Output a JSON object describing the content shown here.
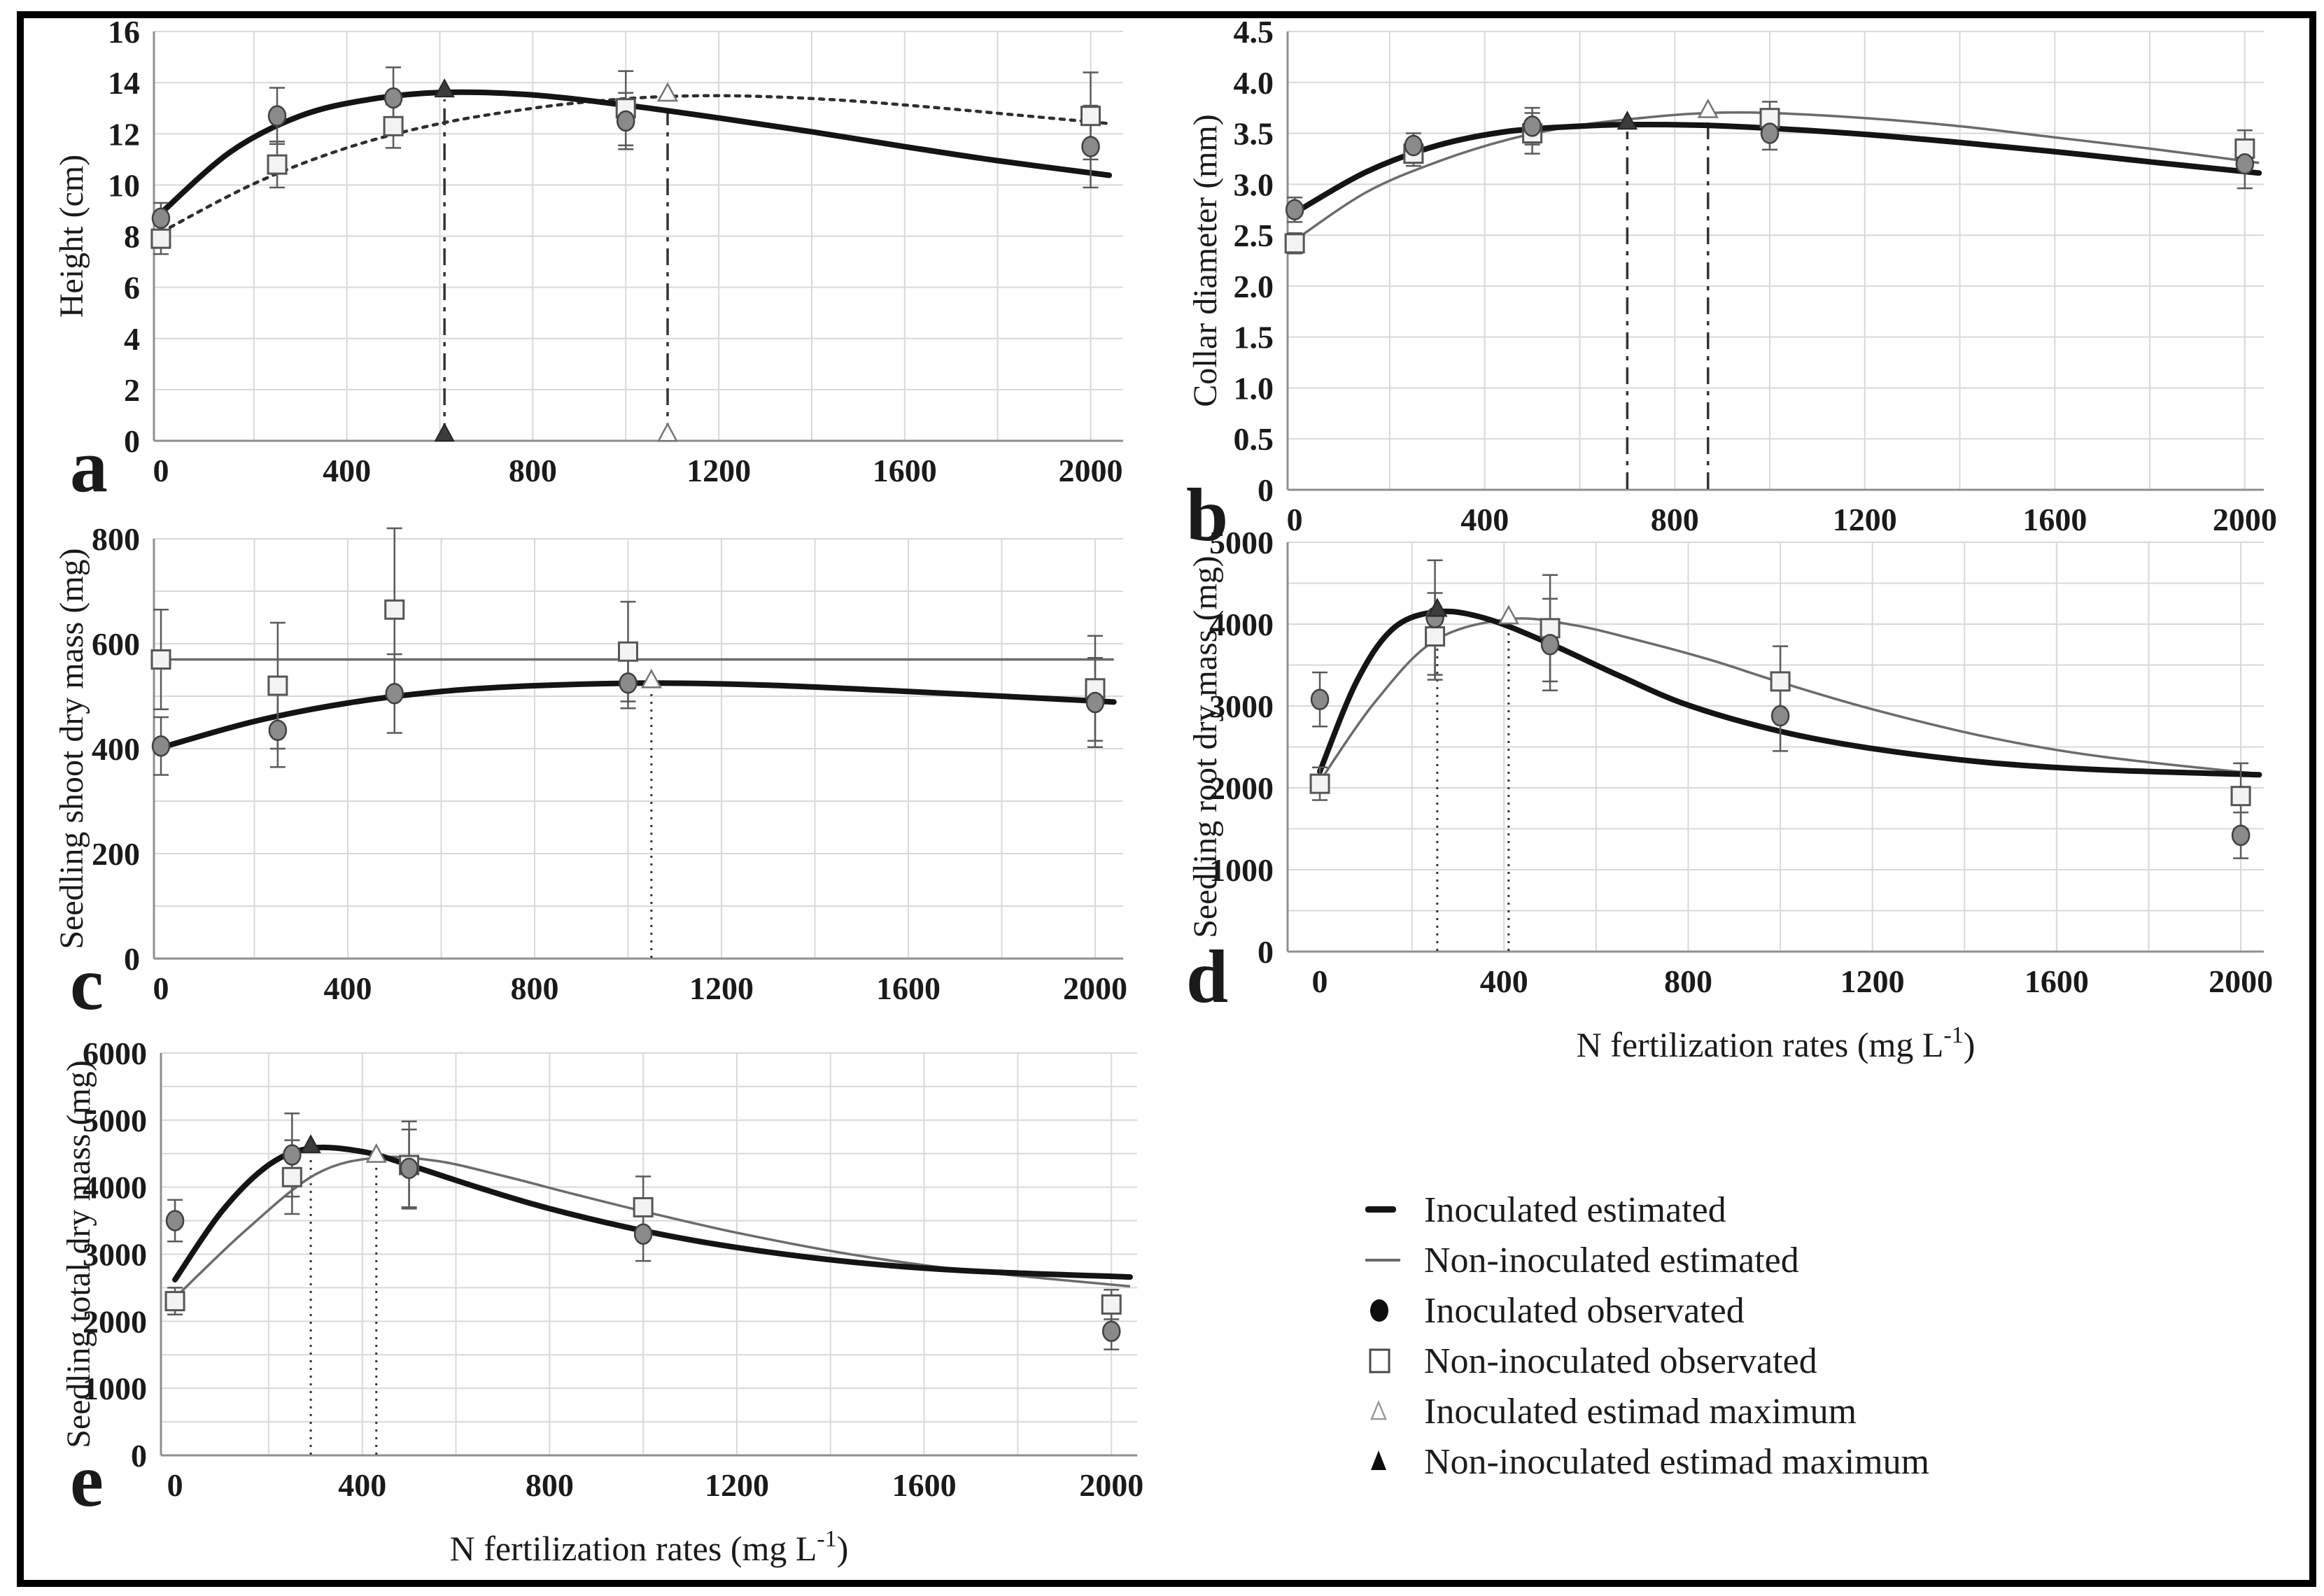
{
  "figure": {
    "legend": {
      "items": [
        {
          "marker": "thick-line-icon",
          "label": "Inoculated estimated"
        },
        {
          "marker": "thin-line-icon",
          "label": "Non-inoculated estimated"
        },
        {
          "marker": "filled-circle-icon",
          "label": "Inoculated observated"
        },
        {
          "marker": "open-square-icon",
          "label": "Non-inoculated observated"
        },
        {
          "marker": "open-triangle-icon",
          "label": "Inoculated estimad maximum"
        },
        {
          "marker": "filled-triangle-icon",
          "label": "Non-inoculated estimad maximum"
        }
      ]
    },
    "colors": {
      "inoculated_line": "#141414",
      "non_inoculated_line": "#6b6b6b",
      "dotted_line": "#2e2e2e",
      "grid": "#d9d9d9",
      "axis": "#8f8f8f",
      "circle_fill": "#8a8a8a",
      "circle_stroke": "#404040",
      "square_fill": "#f3f3f3",
      "square_stroke": "#555555",
      "open_triangle_fill": "#fbfbfb",
      "open_triangle_stroke": "#757575",
      "filled_triangle": "#3c3c3c",
      "error_bar": "#5a5a5a",
      "max_line": "#333333",
      "text": "#1a1a1a"
    }
  },
  "chart_data": [
    {
      "id": "a",
      "type": "line",
      "panel_letter": "a",
      "ylabel": "Height (cm)",
      "xlabel": "",
      "ylim": [
        0,
        16
      ],
      "ygrid_step": 2,
      "ytick_vals": [
        0,
        2,
        4,
        6,
        8,
        10,
        12,
        14,
        16
      ],
      "ytick_labels": [
        "0",
        "2",
        "4",
        "6",
        "8",
        "10",
        "12",
        "14",
        "16"
      ],
      "xlim": [
        -15,
        2070
      ],
      "xgrid_step": 200,
      "xtick_vals": [
        0,
        400,
        800,
        1200,
        1600,
        2000
      ],
      "xtick_labels": [
        "0",
        "400",
        "800",
        "1200",
        "1600",
        "2000"
      ],
      "x_obs": [
        0,
        250,
        500,
        1000,
        2000
      ],
      "series": {
        "inoculated_estimated": {
          "style": "thick",
          "points": [
            [
              0,
              8.9
            ],
            [
              150,
              11.3
            ],
            [
              300,
              12.7
            ],
            [
              450,
              13.35
            ],
            [
              610,
              13.62
            ],
            [
              800,
              13.52
            ],
            [
              1000,
              13.12
            ],
            [
              1200,
              12.62
            ],
            [
              1400,
              12.08
            ],
            [
              1600,
              11.5
            ],
            [
              1800,
              10.95
            ],
            [
              2040,
              10.38
            ]
          ]
        },
        "non_inoculated_estimated": {
          "style": "dotted",
          "points": [
            [
              0,
              8.15
            ],
            [
              200,
              10.05
            ],
            [
              400,
              11.45
            ],
            [
              600,
              12.4
            ],
            [
              800,
              13.0
            ],
            [
              950,
              13.3
            ],
            [
              1090,
              13.46
            ],
            [
              1250,
              13.48
            ],
            [
              1450,
              13.33
            ],
            [
              1650,
              13.05
            ],
            [
              1850,
              12.72
            ],
            [
              2040,
              12.4
            ]
          ]
        },
        "inoculated_observed": {
          "y": [
            8.7,
            12.7,
            13.4,
            12.5,
            11.5
          ],
          "err": [
            0.6,
            1.1,
            1.2,
            1.1,
            1.6
          ]
        },
        "non_inoculated_observed": {
          "y": [
            7.9,
            10.8,
            12.3,
            13.0,
            12.7
          ],
          "err": [
            0.6,
            0.9,
            0.85,
            1.45,
            1.7
          ]
        }
      },
      "maxima": [
        {
          "x": 610,
          "y": 13.62,
          "marker": "filled-triangle",
          "base_marker": true
        },
        {
          "x": 1090,
          "y": 13.46,
          "marker": "open-triangle",
          "base_marker": true
        }
      ],
      "max_line_style": "dashdot"
    },
    {
      "id": "b",
      "type": "line",
      "panel_letter": "b",
      "ylabel": "Collar diameter (mm)",
      "xlabel": "",
      "ylim": [
        0,
        4.5
      ],
      "ygrid_step": 0.5,
      "ytick_vals": [
        0,
        0.5,
        1.0,
        1.5,
        2.0,
        2.5,
        3.0,
        3.5,
        4.0,
        4.5
      ],
      "ytick_labels": [
        "0",
        "0.5",
        "1.0",
        "1.5",
        "2.0",
        "2.5",
        "3.0",
        "3.5",
        "4.0",
        "4.5"
      ],
      "xlim": [
        -15,
        2040
      ],
      "xgrid_step": 200,
      "xtick_vals": [
        0,
        400,
        800,
        1200,
        1600,
        2000
      ],
      "xtick_labels": [
        "0",
        "400",
        "800",
        "1200",
        "1600",
        "2000"
      ],
      "x_obs": [
        0,
        250,
        500,
        1000,
        2000
      ],
      "series": {
        "inoculated_estimated": {
          "style": "thick",
          "points": [
            [
              0,
              2.72
            ],
            [
              150,
              3.12
            ],
            [
              300,
              3.38
            ],
            [
              450,
              3.52
            ],
            [
              600,
              3.57
            ],
            [
              700,
              3.585
            ],
            [
              850,
              3.58
            ],
            [
              1000,
              3.55
            ],
            [
              1200,
              3.49
            ],
            [
              1400,
              3.41
            ],
            [
              1600,
              3.32
            ],
            [
              1800,
              3.22
            ],
            [
              2030,
              3.11
            ]
          ]
        },
        "non_inoculated_estimated": {
          "style": "thin",
          "points": [
            [
              0,
              2.45
            ],
            [
              150,
              2.92
            ],
            [
              300,
              3.22
            ],
            [
              450,
              3.44
            ],
            [
              600,
              3.58
            ],
            [
              750,
              3.66
            ],
            [
              870,
              3.7
            ],
            [
              1000,
              3.7
            ],
            [
              1200,
              3.65
            ],
            [
              1400,
              3.57
            ],
            [
              1600,
              3.46
            ],
            [
              1800,
              3.35
            ],
            [
              2030,
              3.21
            ]
          ]
        },
        "inoculated_observed": {
          "y": [
            2.75,
            3.38,
            3.57,
            3.5,
            3.2
          ],
          "err": [
            0.12,
            0.12,
            0.18,
            0.16,
            0.24
          ]
        },
        "non_inoculated_observed": {
          "y": [
            2.42,
            3.3,
            3.5,
            3.65,
            3.35
          ],
          "err": [
            0.1,
            0.12,
            0.2,
            0.16,
            0.18
          ]
        }
      },
      "maxima": [
        {
          "x": 700,
          "y": 3.585,
          "marker": "filled-triangle",
          "base_marker": false
        },
        {
          "x": 870,
          "y": 3.7,
          "marker": "open-triangle",
          "base_marker": false
        }
      ],
      "max_line_style": "dashdot"
    },
    {
      "id": "c",
      "type": "line",
      "panel_letter": "c",
      "ylabel": "Seedling shoot dry mass (mg)",
      "xlabel": "",
      "ylim": [
        0,
        800
      ],
      "ygrid_step": 100,
      "ytick_vals": [
        0,
        200,
        400,
        600,
        800
      ],
      "ytick_labels": [
        "0",
        "200",
        "400",
        "600",
        "800"
      ],
      "xlim": [
        -15,
        2060
      ],
      "xgrid_step": 200,
      "xtick_vals": [
        0,
        400,
        800,
        1200,
        1600,
        2000
      ],
      "xtick_labels": [
        "0",
        "400",
        "800",
        "1200",
        "1600",
        "2000"
      ],
      "x_obs": [
        0,
        250,
        500,
        1000,
        2000
      ],
      "series": {
        "inoculated_estimated": {
          "style": "thick",
          "points": [
            [
              0,
              402
            ],
            [
              200,
              452
            ],
            [
              400,
              487
            ],
            [
              600,
              509
            ],
            [
              800,
              520
            ],
            [
              1050,
              525
            ],
            [
              1300,
              521
            ],
            [
              1600,
              509
            ],
            [
              2040,
              489
            ]
          ]
        },
        "non_inoculated_estimated": {
          "style": "thin",
          "points": [
            [
              0,
              570
            ],
            [
              2040,
              570
            ]
          ]
        },
        "inoculated_observed": {
          "y": [
            405,
            435,
            505,
            525,
            488
          ],
          "err": [
            55,
            70,
            75,
            48,
            85
          ]
        },
        "non_inoculated_observed": {
          "y": [
            570,
            520,
            665,
            585,
            515
          ],
          "err": [
            95,
            120,
            155,
            95,
            100
          ]
        }
      },
      "maxima": [
        {
          "x": 1050,
          "y": 525,
          "marker": "open-triangle",
          "base_marker": false
        }
      ],
      "max_line_style": "dotted"
    },
    {
      "id": "d",
      "type": "line",
      "panel_letter": "d",
      "ylabel": "Seedling root dry mass (mg)",
      "xlabel": "N fertilization rates (mg L⁻¹)",
      "ylim": [
        0,
        5000
      ],
      "ygrid_step": 500,
      "ytick_vals": [
        0,
        1000,
        2000,
        3000,
        4000,
        5000
      ],
      "ytick_labels": [
        "0",
        "1000",
        "2000",
        "3000",
        "4000",
        "5000"
      ],
      "xlim": [
        -70,
        2050
      ],
      "xgrid_step": 200,
      "xtick_vals": [
        0,
        400,
        800,
        1200,
        1600,
        2000
      ],
      "xtick_labels": [
        "0",
        "400",
        "800",
        "1200",
        "1600",
        "2000"
      ],
      "x_obs": [
        0,
        250,
        500,
        1000,
        2000
      ],
      "series": {
        "inoculated_estimated": {
          "style": "thick",
          "points": [
            [
              0,
              2200
            ],
            [
              80,
              3300
            ],
            [
              160,
              3950
            ],
            [
              255,
              4150
            ],
            [
              360,
              4070
            ],
            [
              500,
              3760
            ],
            [
              650,
              3370
            ],
            [
              800,
              3010
            ],
            [
              1000,
              2690
            ],
            [
              1200,
              2480
            ],
            [
              1450,
              2310
            ],
            [
              1700,
              2220
            ],
            [
              2040,
              2160
            ]
          ]
        },
        "non_inoculated_estimated": {
          "style": "thin",
          "points": [
            [
              0,
              2080
            ],
            [
              120,
              3050
            ],
            [
              250,
              3800
            ],
            [
              410,
              4060
            ],
            [
              550,
              3990
            ],
            [
              700,
              3790
            ],
            [
              850,
              3560
            ],
            [
              1000,
              3290
            ],
            [
              1200,
              2960
            ],
            [
              1450,
              2620
            ],
            [
              1700,
              2380
            ],
            [
              2040,
              2170
            ]
          ]
        },
        "inoculated_observed": {
          "y": [
            3080,
            4080,
            3750,
            2880,
            1420
          ],
          "err": [
            330,
            700,
            560,
            430,
            280
          ]
        },
        "non_inoculated_observed": {
          "y": [
            2050,
            3850,
            3950,
            3300,
            1900
          ],
          "err": [
            200,
            530,
            650,
            430,
            400
          ]
        }
      },
      "maxima": [
        {
          "x": 255,
          "y": 4150,
          "marker": "filled-triangle",
          "base_marker": false
        },
        {
          "x": 410,
          "y": 4060,
          "marker": "open-triangle",
          "base_marker": false
        }
      ],
      "max_line_style": "dotted"
    },
    {
      "id": "e",
      "type": "line",
      "panel_letter": "e",
      "ylabel": "Seedling total dry mass (mg)",
      "xlabel": "N fertilization rates (mg L⁻¹)",
      "ylim": [
        0,
        6000
      ],
      "ygrid_step": 500,
      "ytick_vals": [
        0,
        1000,
        2000,
        3000,
        4000,
        5000,
        6000
      ],
      "ytick_labels": [
        "0",
        "1000",
        "2000",
        "3000",
        "4000",
        "5000",
        "6000"
      ],
      "xlim": [
        -30,
        2055
      ],
      "xgrid_step": 200,
      "xtick_vals": [
        0,
        400,
        800,
        1200,
        1600,
        2000
      ],
      "xtick_labels": [
        "0",
        "400",
        "800",
        "1200",
        "1600",
        "2000"
      ],
      "x_obs": [
        0,
        250,
        500,
        1000,
        2000
      ],
      "series": {
        "inoculated_estimated": {
          "style": "thick",
          "points": [
            [
              0,
              2620
            ],
            [
              100,
              3640
            ],
            [
              200,
              4330
            ],
            [
              290,
              4580
            ],
            [
              400,
              4530
            ],
            [
              500,
              4330
            ],
            [
              650,
              3990
            ],
            [
              800,
              3680
            ],
            [
              1000,
              3350
            ],
            [
              1200,
              3100
            ],
            [
              1450,
              2880
            ],
            [
              1700,
              2750
            ],
            [
              2040,
              2660
            ]
          ]
        },
        "non_inoculated_estimated": {
          "style": "thin",
          "points": [
            [
              0,
              2350
            ],
            [
              150,
              3350
            ],
            [
              300,
              4190
            ],
            [
              430,
              4440
            ],
            [
              560,
              4390
            ],
            [
              700,
              4170
            ],
            [
              850,
              3900
            ],
            [
              1000,
              3640
            ],
            [
              1200,
              3320
            ],
            [
              1450,
              2990
            ],
            [
              1700,
              2750
            ],
            [
              2040,
              2520
            ]
          ]
        },
        "inoculated_observed": {
          "y": [
            3500,
            4480,
            4280,
            3300,
            1850
          ],
          "err": [
            310,
            620,
            580,
            400,
            270
          ]
        },
        "non_inoculated_observed": {
          "y": [
            2300,
            4150,
            4330,
            3700,
            2250
          ],
          "err": [
            200,
            550,
            650,
            460,
            220
          ]
        }
      },
      "maxima": [
        {
          "x": 290,
          "y": 4580,
          "marker": "filled-triangle",
          "base_marker": false
        },
        {
          "x": 430,
          "y": 4440,
          "marker": "open-triangle",
          "base_marker": false
        }
      ],
      "max_line_style": "dotted"
    }
  ]
}
